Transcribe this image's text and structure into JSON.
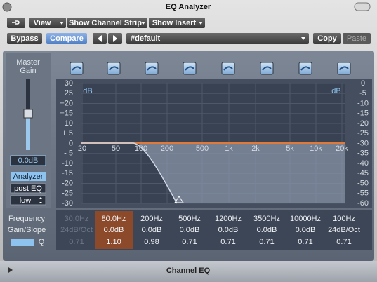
{
  "window": {
    "title": "EQ Analyzer"
  },
  "toolbar": {
    "menus": [
      "View",
      "Show Channel Strip",
      "Show Insert"
    ],
    "buttons": [
      "Bypass",
      "Compare"
    ],
    "preset": "#default",
    "copy": "Copy",
    "paste": "Paste"
  },
  "left_panel": {
    "label": [
      "Master",
      "Gain"
    ],
    "value": "0.0dB",
    "analyzer": "Analyzer",
    "position": "post EQ",
    "resolution": "low"
  },
  "graph": {
    "unit_left": "dB",
    "unit_right": "dB",
    "left_scale": [
      "+30",
      "+25",
      "+20",
      "+15",
      "+10",
      "+ 5",
      "0",
      "- 5",
      "-10",
      "-15",
      "-20",
      "-25",
      "-30"
    ],
    "right_scale": [
      "0",
      "-5",
      "-10",
      "-15",
      "-20",
      "-25",
      "-30",
      "-35",
      "-40",
      "-45",
      "-50",
      "-55",
      "-60"
    ],
    "freq_labels": [
      "20",
      "50",
      "100",
      "200",
      "500",
      "1k",
      "2k",
      "5k",
      "10k",
      "20k"
    ]
  },
  "bands": {
    "row_labels": [
      "Frequency",
      "Gain/Slope",
      "Q"
    ],
    "columns": [
      {
        "frequency": "30.0Hz",
        "gain": "24dB/Oct",
        "q": "0.71"
      },
      {
        "frequency": "80.0Hz",
        "gain": "0.0dB",
        "q": "1.10"
      },
      {
        "frequency": "200Hz",
        "gain": "0.0dB",
        "q": "0.98"
      },
      {
        "frequency": "500Hz",
        "gain": "0.0dB",
        "q": "0.71"
      },
      {
        "frequency": "1200Hz",
        "gain": "0.0dB",
        "q": "0.71"
      },
      {
        "frequency": "3500Hz",
        "gain": "0.0dB",
        "q": "0.71"
      },
      {
        "frequency": "10000Hz",
        "gain": "0.0dB",
        "q": "0.71"
      },
      {
        "frequency": "100Hz",
        "gain": "24dB/Oct",
        "q": "0.71"
      }
    ]
  },
  "footer": {
    "title": "Channel EQ"
  }
}
